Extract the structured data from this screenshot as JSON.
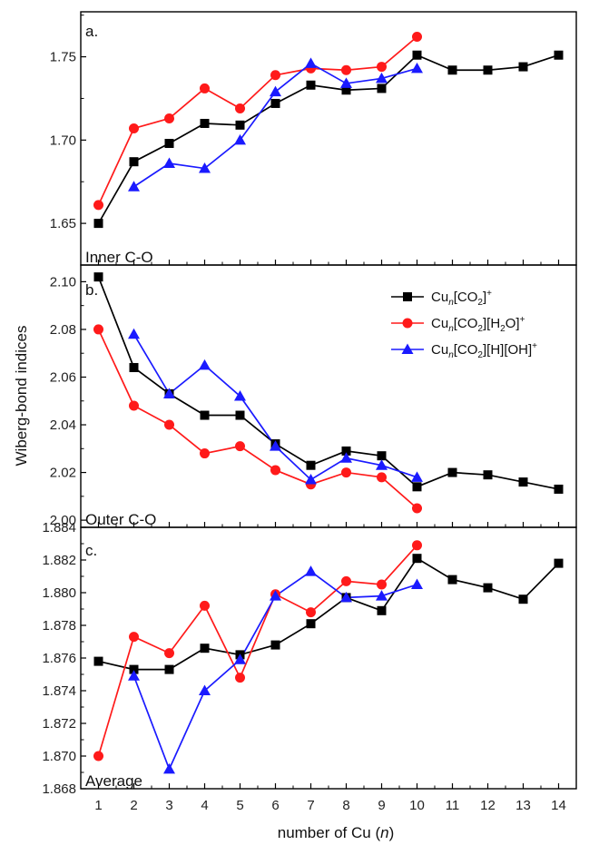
{
  "colors": {
    "black_series": "#000000",
    "red_series": "#ff1a1a",
    "blue_series": "#1a1aff",
    "axis": "#000000"
  },
  "y_axis_title": "Wiberg-bond indices",
  "x_axis_title": "number of Cu (",
  "x_axis_title_var": "n",
  "x_axis_title_end": ")",
  "legend": {
    "placement": "top-right of panel b",
    "entries": [
      {
        "prefix": "Cu",
        "sub_n": "n",
        "bracket": "[CO",
        "sub2": "2",
        "close": "]",
        "extra": "",
        "sub_extra": "",
        "extra_close": "",
        "tail": "",
        "sup": "+"
      },
      {
        "prefix": "Cu",
        "sub_n": "n",
        "bracket": "[CO",
        "sub2": "2",
        "close": "][H",
        "extra": "",
        "sub_extra": "2",
        "extra_close": "O]",
        "tail": "",
        "sup": "+"
      },
      {
        "prefix": "Cu",
        "sub_n": "n",
        "bracket": "[CO",
        "sub2": "2",
        "close": "][H][OH]",
        "extra": "",
        "sub_extra": "",
        "extra_close": "",
        "tail": "",
        "sup": "+"
      }
    ]
  },
  "chart_data": [
    {
      "type": "line",
      "panel_label": "a.",
      "corner_label": "Inner C-O",
      "x_ticks": [
        1,
        2,
        3,
        4,
        5,
        6,
        7,
        8,
        9,
        10,
        11,
        12,
        13,
        14
      ],
      "xlim": [
        0.5,
        14.5
      ],
      "ylim": [
        1.625,
        1.777
      ],
      "y_ticks": [
        "1.65",
        "1.70",
        "1.75"
      ],
      "series": [
        {
          "name": "Cun[CO2]+",
          "marker": "square",
          "color": "#000000",
          "x": [
            1,
            2,
            3,
            4,
            5,
            6,
            7,
            8,
            9,
            10,
            11,
            12,
            13,
            14
          ],
          "y": [
            1.65,
            1.687,
            1.698,
            1.71,
            1.709,
            1.722,
            1.733,
            1.73,
            1.731,
            1.751,
            1.742,
            1.742,
            1.744,
            1.751
          ]
        },
        {
          "name": "Cun[CO2][H2O]+",
          "marker": "circle",
          "color": "#ff1a1a",
          "x": [
            1,
            2,
            3,
            4,
            5,
            6,
            7,
            8,
            9,
            10
          ],
          "y": [
            1.661,
            1.707,
            1.713,
            1.731,
            1.719,
            1.739,
            1.743,
            1.742,
            1.744,
            1.762
          ]
        },
        {
          "name": "Cun[CO2][H][OH]+",
          "marker": "triangle",
          "color": "#1a1aff",
          "x": [
            2,
            3,
            4,
            5,
            6,
            7,
            8,
            9,
            10
          ],
          "y": [
            1.672,
            1.686,
            1.683,
            1.7,
            1.729,
            1.746,
            1.734,
            1.737,
            1.743
          ]
        }
      ]
    },
    {
      "type": "line",
      "panel_label": "b.",
      "corner_label": "Outer C-O",
      "x_ticks": [
        1,
        2,
        3,
        4,
        5,
        6,
        7,
        8,
        9,
        10,
        11,
        12,
        13,
        14
      ],
      "xlim": [
        0.5,
        14.5
      ],
      "ylim": [
        1.997,
        2.107
      ],
      "y_ticks": [
        "2.00",
        "2.02",
        "2.04",
        "2.06",
        "2.08",
        "2.10"
      ],
      "series": [
        {
          "name": "Cun[CO2]+",
          "marker": "square",
          "color": "#000000",
          "x": [
            1,
            2,
            3,
            4,
            5,
            6,
            7,
            8,
            9,
            10,
            11,
            12,
            13,
            14
          ],
          "y": [
            2.102,
            2.064,
            2.053,
            2.044,
            2.044,
            2.032,
            2.023,
            2.029,
            2.027,
            2.014,
            2.02,
            2.019,
            2.016,
            2.013
          ]
        },
        {
          "name": "Cun[CO2][H2O]+",
          "marker": "circle",
          "color": "#ff1a1a",
          "x": [
            1,
            2,
            3,
            4,
            5,
            6,
            7,
            8,
            9,
            10
          ],
          "y": [
            2.08,
            2.048,
            2.04,
            2.028,
            2.031,
            2.021,
            2.015,
            2.02,
            2.018,
            2.005
          ]
        },
        {
          "name": "Cun[CO2][H][OH]+",
          "marker": "triangle",
          "color": "#1a1aff",
          "x": [
            2,
            3,
            4,
            5,
            6,
            7,
            8,
            9,
            10
          ],
          "y": [
            2.078,
            2.053,
            2.065,
            2.052,
            2.031,
            2.017,
            2.026,
            2.023,
            2.018
          ]
        }
      ]
    },
    {
      "type": "line",
      "panel_label": "c.",
      "corner_label": "Average",
      "x_ticks": [
        1,
        2,
        3,
        4,
        5,
        6,
        7,
        8,
        9,
        10,
        11,
        12,
        13,
        14
      ],
      "xlim": [
        0.5,
        14.5
      ],
      "ylim": [
        1.868,
        1.884
      ],
      "y_ticks": [
        "1.868",
        "1.870",
        "1.872",
        "1.874",
        "1.876",
        "1.878",
        "1.880",
        "1.882",
        "1.884"
      ],
      "series": [
        {
          "name": "Cun[CO2]+",
          "marker": "square",
          "color": "#000000",
          "x": [
            1,
            2,
            3,
            4,
            5,
            6,
            7,
            8,
            9,
            10,
            11,
            12,
            13,
            14
          ],
          "y": [
            1.8758,
            1.8753,
            1.8753,
            1.8766,
            1.8762,
            1.8768,
            1.8781,
            1.8797,
            1.8789,
            1.8821,
            1.8808,
            1.8803,
            1.8796,
            1.8818
          ]
        },
        {
          "name": "Cun[CO2][H2O]+",
          "marker": "circle",
          "color": "#ff1a1a",
          "x": [
            1,
            2,
            3,
            4,
            5,
            6,
            7,
            8,
            9,
            10
          ],
          "y": [
            1.87,
            1.8773,
            1.8763,
            1.8792,
            1.8748,
            1.8799,
            1.8788,
            1.8807,
            1.8805,
            1.8829
          ]
        },
        {
          "name": "Cun[CO2][H][OH]+",
          "marker": "triangle",
          "color": "#1a1aff",
          "x": [
            2,
            3,
            4,
            5,
            6,
            7,
            8,
            9,
            10
          ],
          "y": [
            1.8749,
            1.8692,
            1.874,
            1.8759,
            1.8798,
            1.8813,
            1.8797,
            1.8798,
            1.8805
          ]
        }
      ]
    }
  ]
}
